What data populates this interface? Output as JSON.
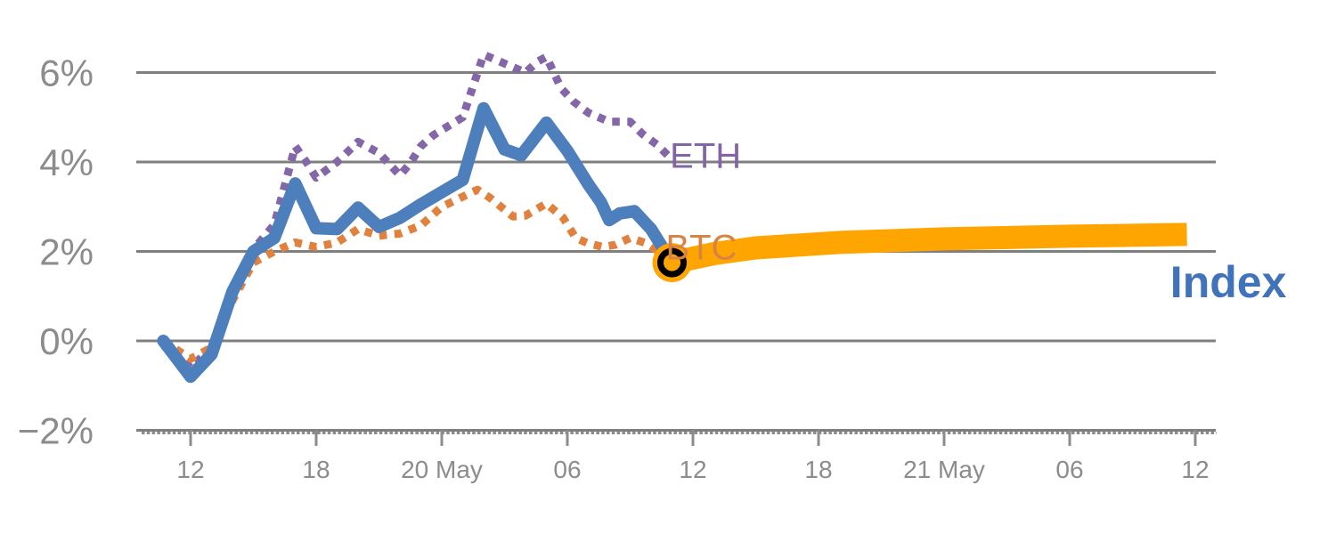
{
  "chart_data": {
    "type": "line",
    "title": "",
    "description": "Crypto percent-change chart: ETH and BTC dotted history, Index solid history continuing as thick orange projection line with black ring marker at the junction",
    "grid": true,
    "colors": {
      "gridline": "#7F7F7F",
      "axis_text": "#8C8C8C",
      "marker_ring": "#000000",
      "background": "#FFFFFF"
    },
    "x_axis": {
      "unit": "hours from first labeled tick (19 May 12:00)",
      "ticks": [
        {
          "t": 0,
          "label": "12"
        },
        {
          "t": 6,
          "label": "18"
        },
        {
          "t": 12,
          "label": "20 May"
        },
        {
          "t": 18,
          "label": "06"
        },
        {
          "t": 24,
          "label": "12"
        },
        {
          "t": 30,
          "label": "18"
        },
        {
          "t": 36,
          "label": "21 May"
        },
        {
          "t": 42,
          "label": "06"
        },
        {
          "t": 48,
          "label": "12"
        }
      ],
      "range": [
        -2.6,
        49.0
      ]
    },
    "y_axis": {
      "unit": "%",
      "ticks": [
        {
          "v": 6,
          "label": "6%"
        },
        {
          "v": 4,
          "label": "4%"
        },
        {
          "v": 2,
          "label": "2%"
        },
        {
          "v": 0,
          "label": "0%"
        },
        {
          "v": -2,
          "label": "−2%"
        }
      ],
      "range": [
        -2.6,
        6.9
      ]
    },
    "series": [
      {
        "name": "ETH",
        "style": "dotted",
        "color": "#8467A7",
        "label": {
          "text": "ETH",
          "t": 22.9,
          "v": 4.15,
          "color": "#8265A4"
        },
        "points": [
          [
            -1.3,
            0.0
          ],
          [
            0,
            -0.6
          ],
          [
            1,
            -0.15
          ],
          [
            2,
            1.0
          ],
          [
            3,
            2.05
          ],
          [
            4,
            2.6
          ],
          [
            5,
            4.35
          ],
          [
            5.6,
            3.95
          ],
          [
            6,
            3.65
          ],
          [
            7,
            4.0
          ],
          [
            8,
            4.45
          ],
          [
            9,
            4.2
          ],
          [
            10,
            3.7
          ],
          [
            10.5,
            3.98
          ],
          [
            11,
            4.35
          ],
          [
            11.6,
            4.6
          ],
          [
            13,
            5.0
          ],
          [
            14,
            6.4
          ],
          [
            15,
            6.2
          ],
          [
            16,
            6.0
          ],
          [
            16.6,
            6.25
          ],
          [
            17,
            6.35
          ],
          [
            17.7,
            5.65
          ],
          [
            18.3,
            5.35
          ],
          [
            19,
            5.1
          ],
          [
            20,
            4.9
          ],
          [
            21,
            4.9
          ],
          [
            21.6,
            4.62
          ],
          [
            22.3,
            4.38
          ],
          [
            22.8,
            4.15
          ]
        ]
      },
      {
        "name": "BTC",
        "style": "dotted",
        "color": "#E0823E",
        "label": {
          "text": "BTC",
          "t": 22.7,
          "v": 2.1,
          "color": "#D98243"
        },
        "points": [
          [
            -1.3,
            0.0
          ],
          [
            0,
            -0.4
          ],
          [
            1,
            -0.15
          ],
          [
            2,
            0.9
          ],
          [
            3,
            1.75
          ],
          [
            4,
            2.0
          ],
          [
            5,
            2.2
          ],
          [
            6,
            2.1
          ],
          [
            7,
            2.2
          ],
          [
            8,
            2.5
          ],
          [
            9,
            2.35
          ],
          [
            10,
            2.4
          ],
          [
            11,
            2.58
          ],
          [
            12,
            3.0
          ],
          [
            13.7,
            3.38
          ],
          [
            14.3,
            3.2
          ],
          [
            15.4,
            2.78
          ],
          [
            16,
            2.8
          ],
          [
            17,
            3.07
          ],
          [
            17.8,
            2.75
          ],
          [
            18.4,
            2.3
          ],
          [
            19,
            2.18
          ],
          [
            19.7,
            2.1
          ],
          [
            20.3,
            2.15
          ],
          [
            21,
            2.3
          ],
          [
            21.8,
            2.18
          ],
          [
            22.9,
            1.82
          ]
        ]
      },
      {
        "name": "Index",
        "style": "line",
        "color": "#4E7FBD",
        "label": {
          "text": "Index",
          "t": 46.8,
          "v": 1.32,
          "color": "#4173BA",
          "bold": true
        },
        "points": [
          [
            -1.3,
            0.0
          ],
          [
            0,
            -0.8
          ],
          [
            1,
            -0.3
          ],
          [
            2,
            1.1
          ],
          [
            3,
            2.0
          ],
          [
            4,
            2.3
          ],
          [
            5,
            3.52
          ],
          [
            6,
            2.52
          ],
          [
            7,
            2.5
          ],
          [
            8,
            2.98
          ],
          [
            9,
            2.55
          ],
          [
            10,
            2.75
          ],
          [
            11,
            3.05
          ],
          [
            13,
            3.6
          ],
          [
            14,
            5.2
          ],
          [
            15,
            4.28
          ],
          [
            15.8,
            4.15
          ],
          [
            17,
            4.88
          ],
          [
            18,
            4.25
          ],
          [
            19,
            3.5
          ],
          [
            19.6,
            3.1
          ],
          [
            20,
            2.7
          ],
          [
            20.5,
            2.85
          ],
          [
            21.2,
            2.9
          ],
          [
            22,
            2.5
          ],
          [
            23,
            1.75
          ]
        ]
      },
      {
        "name": "Index-projection",
        "style": "thick-line",
        "color": "#FFA502",
        "points": [
          [
            23,
            1.75
          ],
          [
            25,
            1.95
          ],
          [
            27,
            2.08
          ],
          [
            31,
            2.2
          ],
          [
            36,
            2.28
          ],
          [
            42,
            2.34
          ],
          [
            47.6,
            2.38
          ]
        ]
      }
    ],
    "now_marker": {
      "t": 23,
      "v": 1.75
    }
  }
}
